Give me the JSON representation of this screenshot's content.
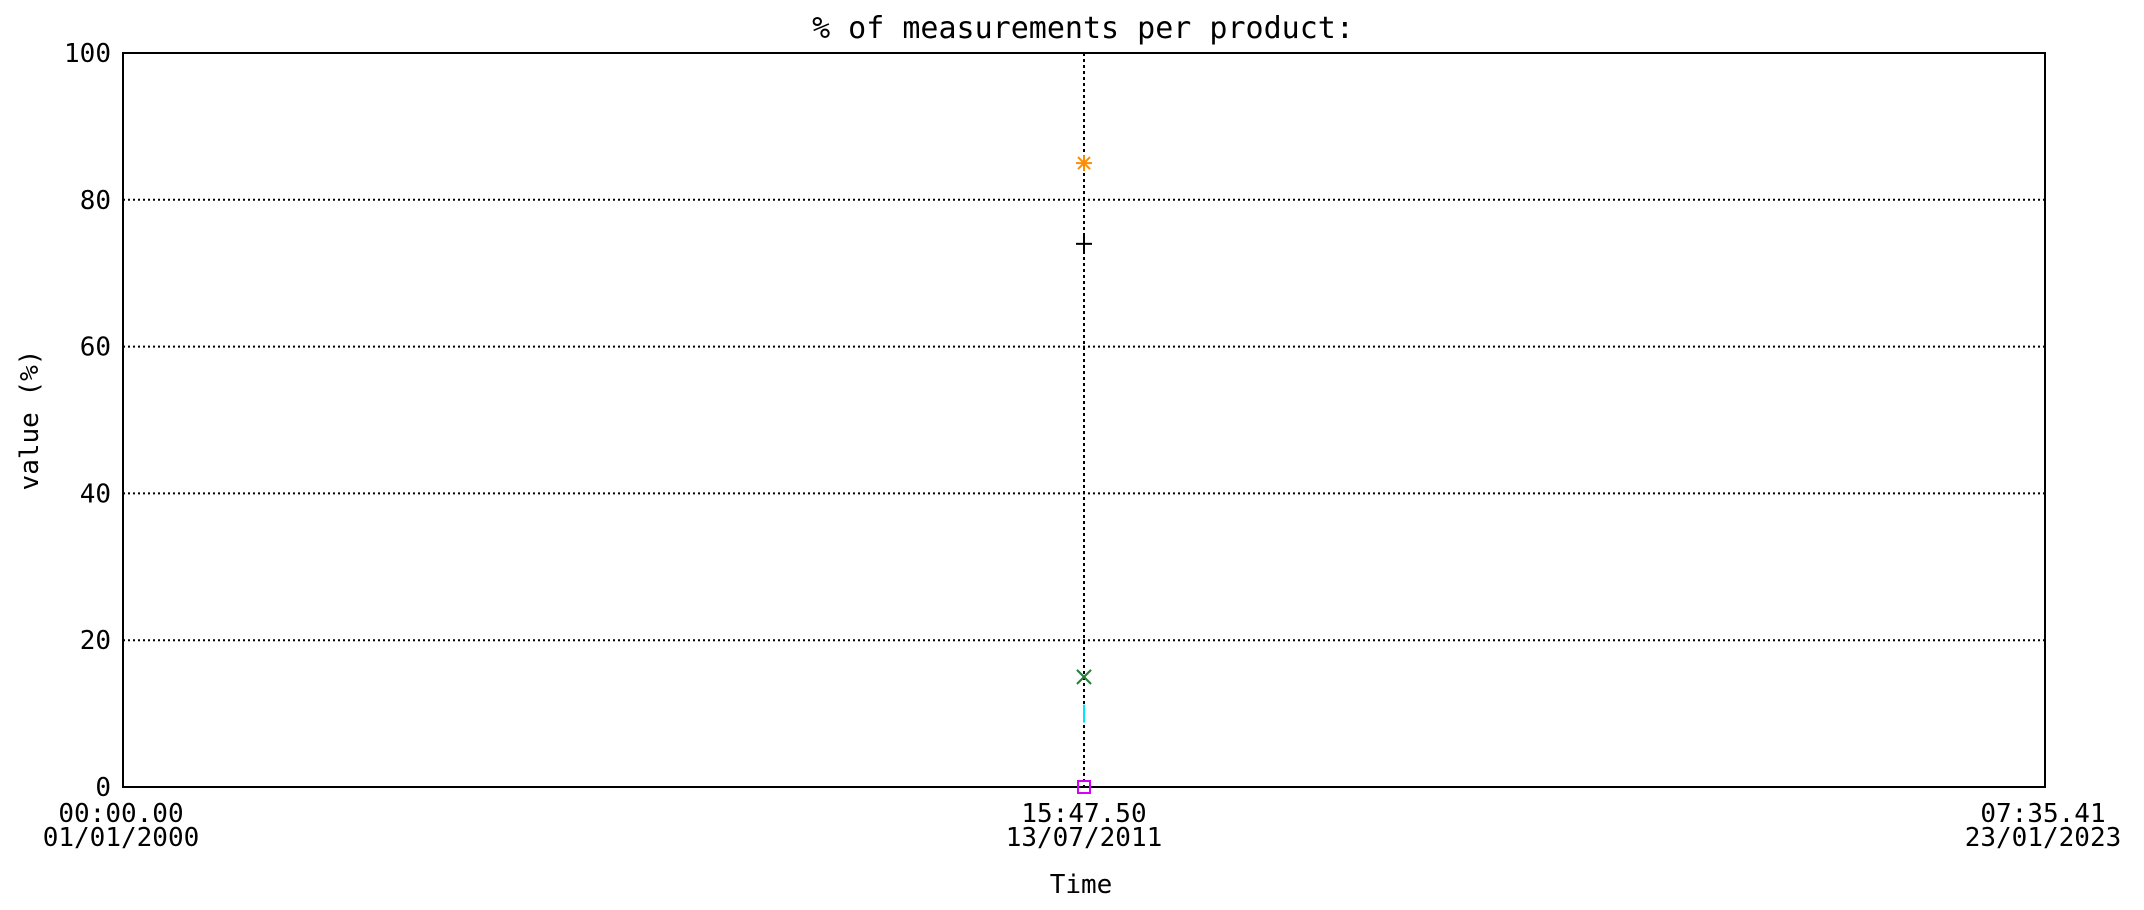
{
  "chart_data": {
    "type": "scatter",
    "title": "% of measurements per product:",
    "ylabel": "value (%)",
    "xlabel": "Time",
    "ylim": [
      0,
      100
    ],
    "yticks": [
      0,
      20,
      40,
      60,
      80,
      100
    ],
    "xlim": [
      "2000-01-01T00:00:00",
      "2023-01-23T07:35:41"
    ],
    "xticks": [
      {
        "x": "2000-01-01T00:00:00",
        "line1": "00:00.00",
        "line2": "01/01/2000"
      },
      {
        "x": "2011-07-13T15:47:50",
        "line1": "15:47.50",
        "line2": "13/07/2011"
      },
      {
        "x": "2023-01-23T07:35:41",
        "line1": "07:35.41",
        "line2": "23/01/2023"
      }
    ],
    "grid": true,
    "vertical_marker_x": "2011-07-13T15:47:50",
    "series": [
      {
        "x": "2011-07-13T15:47:50",
        "y": 85,
        "marker": "asterisk",
        "color": "#ff8c00"
      },
      {
        "x": "2011-07-13T15:47:50",
        "y": 74,
        "marker": "plus",
        "color": "#000000"
      },
      {
        "x": "2011-07-13T15:47:50",
        "y": 15,
        "marker": "x",
        "color": "#00bcd4"
      },
      {
        "x": "2011-07-13T15:47:50",
        "y": 15,
        "marker": "x",
        "color": "#2e7d32"
      },
      {
        "x": "2011-07-13T15:47:50",
        "y": 10,
        "marker": "vbar",
        "color": "#00e5ff"
      },
      {
        "x": "2011-07-13T15:47:50",
        "y": 0,
        "marker": "square",
        "color": "#d500f9"
      }
    ]
  }
}
